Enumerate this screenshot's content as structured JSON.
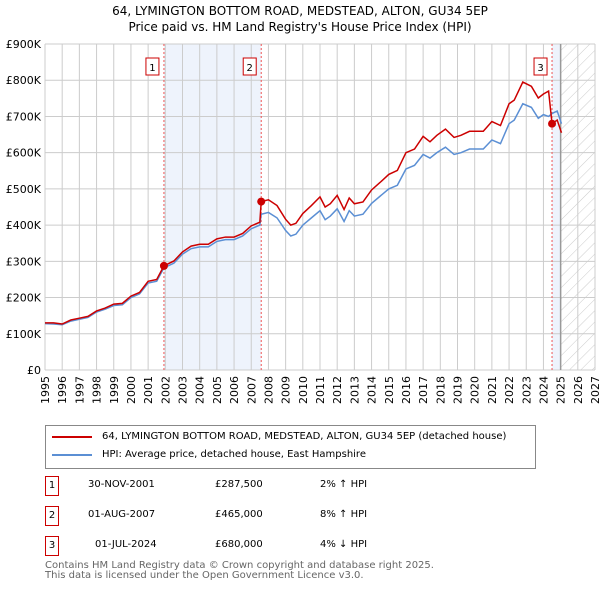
{
  "chart_data": {
    "type": "line",
    "title": "64, LYMINGTON BOTTOM ROAD, MEDSTEAD, ALTON, GU34 5EP",
    "subtitle": "Price paid vs. HM Land Registry's House Price Index (HPI)",
    "xlim": [
      1995,
      2027
    ],
    "ylim": [
      0,
      900000
    ],
    "y_ticks": [
      {
        "v": 0,
        "label": "£0"
      },
      {
        "v": 100000,
        "label": "£100K"
      },
      {
        "v": 200000,
        "label": "£200K"
      },
      {
        "v": 300000,
        "label": "£300K"
      },
      {
        "v": 400000,
        "label": "£400K"
      },
      {
        "v": 500000,
        "label": "£500K"
      },
      {
        "v": 600000,
        "label": "£600K"
      },
      {
        "v": 700000,
        "label": "£700K"
      },
      {
        "v": 800000,
        "label": "£800K"
      },
      {
        "v": 900000,
        "label": "£900K"
      }
    ],
    "x_ticks": [
      "1995",
      "1996",
      "1997",
      "1998",
      "1999",
      "2000",
      "2001",
      "2002",
      "2003",
      "2004",
      "2005",
      "2006",
      "2007",
      "2008",
      "2009",
      "2010",
      "2011",
      "2012",
      "2013",
      "2014",
      "2015",
      "2016",
      "2017",
      "2018",
      "2019",
      "2020",
      "2021",
      "2022",
      "2023",
      "2024",
      "2025",
      "2026",
      "2027"
    ],
    "grid": true,
    "forecast_from": 2025,
    "shaded_ranges": [
      [
        2001.92,
        2007.58
      ],
      [
        2024.5,
        2025.0
      ]
    ],
    "x": [
      1995.0,
      1995.5,
      1996.0,
      1996.5,
      1997.0,
      1997.5,
      1998.0,
      1998.5,
      1999.0,
      1999.5,
      2000.0,
      2000.5,
      2001.0,
      2001.5,
      2001.92,
      2002.5,
      2003.0,
      2003.5,
      2004.0,
      2004.5,
      2005.0,
      2005.5,
      2006.0,
      2006.5,
      2007.0,
      2007.5,
      2007.58,
      2008.0,
      2008.5,
      2009.0,
      2009.3,
      2009.6,
      2010.0,
      2010.5,
      2011.0,
      2011.3,
      2011.6,
      2012.0,
      2012.4,
      2012.7,
      2013.0,
      2013.5,
      2014.0,
      2014.5,
      2015.0,
      2015.5,
      2016.0,
      2016.5,
      2017.0,
      2017.4,
      2017.8,
      2018.3,
      2018.8,
      2019.2,
      2019.7,
      2020.5,
      2021.0,
      2021.5,
      2022.0,
      2022.3,
      2022.8,
      2023.3,
      2023.7,
      2024.0,
      2024.3,
      2024.5,
      2024.8,
      2025.05
    ],
    "series": [
      {
        "name": "64, LYMINGTON BOTTOM ROAD, MEDSTEAD, ALTON, GU34 5EP (detached house)",
        "color": "#cc0000",
        "values": [
          130,
          130,
          127,
          138,
          143,
          148,
          163,
          171,
          182,
          184,
          204,
          214,
          245,
          250,
          287.5,
          301,
          326,
          342,
          347,
          347,
          362,
          367,
          367,
          377,
          398,
          408,
          465,
          470,
          454,
          416,
          400,
          405,
          432,
          454,
          478,
          450,
          459,
          482,
          443,
          475,
          459,
          464,
          497,
          518,
          540,
          551,
          600,
          610,
          645,
          630,
          648,
          665,
          642,
          648,
          659,
          659,
          686,
          675,
          735,
          745,
          795,
          783,
          751,
          762,
          770,
          680,
          690,
          655
        ]
      },
      {
        "name": "HPI: Average price, detached house, East Hampshire",
        "color": "#5b8fd4",
        "values": [
          128,
          127,
          125,
          135,
          140,
          145,
          160,
          168,
          178,
          180,
          200,
          210,
          240,
          245,
          282,
          295,
          320,
          335,
          340,
          340,
          355,
          360,
          360,
          370,
          390,
          400,
          430,
          435,
          420,
          385,
          370,
          375,
          400,
          420,
          440,
          415,
          425,
          445,
          410,
          440,
          425,
          430,
          460,
          480,
          500,
          510,
          555,
          565,
          595,
          585,
          600,
          615,
          595,
          600,
          610,
          610,
          635,
          625,
          680,
          690,
          735,
          725,
          695,
          705,
          700,
          708,
          715,
          680
        ]
      }
    ],
    "values_unit": "£ thousands",
    "sales": [
      {
        "n": "1",
        "x": 2001.92,
        "price": 287.5,
        "date": "30-NOV-2001",
        "price_label": "£287,500",
        "hpi": "2% ↑ HPI"
      },
      {
        "n": "2",
        "x": 2007.58,
        "price": 465,
        "date": "01-AUG-2007",
        "price_label": "£465,000",
        "hpi": "8% ↑ HPI"
      },
      {
        "n": "3",
        "x": 2024.5,
        "price": 680,
        "date": "01-JUL-2024",
        "price_label": "£680,000",
        "hpi": "4% ↓ HPI"
      }
    ]
  },
  "footer": {
    "line1": "Contains HM Land Registry data © Crown copyright and database right 2025.",
    "line2": "This data is licensed under the Open Government Licence v3.0."
  }
}
